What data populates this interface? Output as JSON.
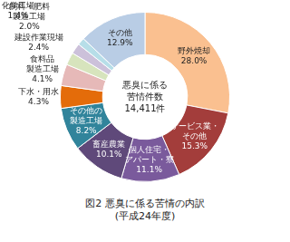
{
  "chart_data": {
    "type": "doughnut",
    "title": "図2 悪臭に係る苦情の内訳",
    "subtitle": "(平成24年度)",
    "annotations": [
      "悪臭に係る\n苦情件数",
      "14,411件"
    ],
    "categories": [
      "野外焼却",
      "サービス業・\nその他",
      "個人住宅・\nアパート・寮",
      "畜産農業",
      "その他の\n製造工場",
      "下水・用水",
      "食料品\n製造工場",
      "建設作業現場",
      "飼料・肥料\n製造工場",
      "化学工場",
      "その他"
    ],
    "values": [
      28.0,
      15.3,
      11.1,
      10.1,
      8.2,
      4.3,
      4.1,
      2.4,
      2.0,
      1.4,
      12.9
    ],
    "value_labels": [
      "28.0%",
      "15.3%",
      "11.1%",
      "10.1%",
      "8.2%",
      "4.3%",
      "4.1%",
      "2.4%",
      "2.0%",
      "1.4%",
      "12.9%"
    ],
    "colors": [
      "#fac090",
      "#a33d3b",
      "#7a5a9c",
      "#5f497a",
      "#31849b",
      "#e46c0a",
      "#e6b9b8",
      "#d7e4bd",
      "#ccc1da",
      "#b7dee8",
      "#b9cde5"
    ],
    "data_labels": true
  }
}
